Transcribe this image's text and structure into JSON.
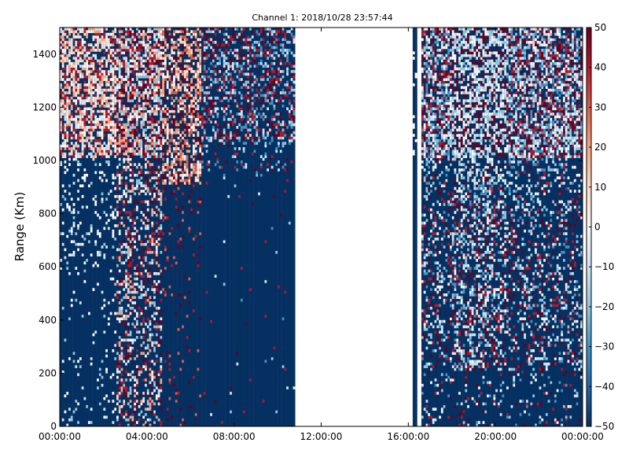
{
  "chart_data": {
    "type": "heatmap",
    "title": "Channel 1: 2018/10/28 23:57:44",
    "xlabel": "",
    "ylabel": "Range (Km)",
    "x_range_hours": [
      0,
      24
    ],
    "x_ticks": [
      "00:00:00",
      "04:00:00",
      "08:00:00",
      "12:00:00",
      "16:00:00",
      "20:00:00",
      "00:00:00"
    ],
    "x_tick_hours": [
      0,
      4,
      8,
      12,
      16,
      20,
      24
    ],
    "ylim": [
      0,
      1500
    ],
    "y_ticks": [
      0,
      200,
      400,
      600,
      800,
      1000,
      1200,
      1400
    ],
    "colorbar": {
      "range": [
        -50,
        50
      ],
      "ticks": [
        -50,
        -40,
        -30,
        -20,
        -10,
        0,
        10,
        20,
        30,
        40,
        50
      ],
      "colormap": "RdBu_r",
      "colors": [
        "#053061",
        "#2166ac",
        "#4393c3",
        "#92c5de",
        "#d1e5f0",
        "#f7f7f7",
        "#fddbc7",
        "#f4a582",
        "#d6604d",
        "#b2182b",
        "#67001f"
      ]
    },
    "background_value": -50,
    "data_gaps_hours": [
      [
        10.8,
        16.2
      ],
      [
        16.45,
        16.65
      ]
    ],
    "gap_partial_hours": [
      16.2,
      16.45
    ],
    "approx_noise_regions": [
      {
        "x_hours": [
          0,
          2.6
        ],
        "y_km": [
          1000,
          1500
        ],
        "dominant": "light red/white"
      },
      {
        "x_hours": [
          2.6,
          4.7
        ],
        "y_km": [
          0,
          1500
        ],
        "dominant": "dark red/white"
      },
      {
        "x_hours": [
          4.7,
          6.5
        ],
        "y_km": [
          900,
          1500
        ],
        "dominant": "salmon"
      },
      {
        "x_hours": [
          6.5,
          10.8
        ],
        "y_km": [
          1000,
          1500
        ],
        "dominant": "dark red/light blue"
      },
      {
        "x_hours": [
          16.65,
          24
        ],
        "y_km": [
          200,
          1500
        ],
        "dominant": "light blue/white/dark red"
      }
    ]
  }
}
